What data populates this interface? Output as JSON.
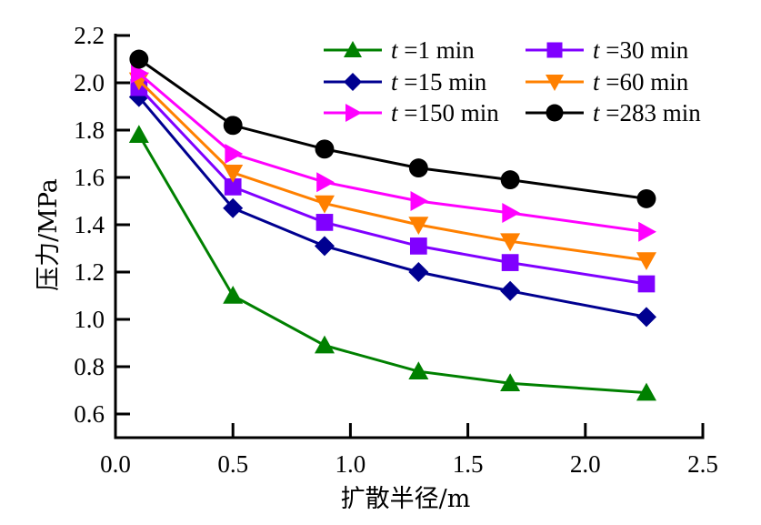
{
  "chart_data": {
    "type": "line",
    "title": "",
    "xlabel": "扩散半径/m",
    "ylabel": "压力/MPa",
    "xlim": [
      0.0,
      2.5
    ],
    "ylim": [
      0.5,
      2.2
    ],
    "xticks": [
      "0.0",
      "0.5",
      "1.0",
      "1.5",
      "2.0",
      "2.5"
    ],
    "yticks": [
      "0.6",
      "0.8",
      "1.0",
      "1.2",
      "1.4",
      "1.6",
      "1.8",
      "2.0",
      "2.2"
    ],
    "grid": false,
    "legend_position": "top-right",
    "x": [
      0.1,
      0.5,
      0.89,
      1.29,
      1.68,
      2.26
    ],
    "series": [
      {
        "name": "t =1 min",
        "t_prefix": "t",
        "label_rest": " =1 min",
        "color": "#008000",
        "marker": "triangle-up",
        "values": [
          1.78,
          1.1,
          0.89,
          0.78,
          0.73,
          0.69
        ]
      },
      {
        "name": "t =30 min",
        "t_prefix": "t",
        "label_rest": " =30 min",
        "color": "#8000FF",
        "marker": "square",
        "values": [
          1.98,
          1.56,
          1.41,
          1.31,
          1.24,
          1.15
        ]
      },
      {
        "name": "t =15 min",
        "t_prefix": "t",
        "label_rest": " =15 min",
        "color": "#000090",
        "marker": "diamond",
        "values": [
          1.94,
          1.47,
          1.31,
          1.2,
          1.12,
          1.01
        ]
      },
      {
        "name": "t =60 min",
        "t_prefix": "t",
        "label_rest": " =60 min",
        "color": "#FF8000",
        "marker": "triangle-down",
        "values": [
          2.01,
          1.62,
          1.49,
          1.4,
          1.33,
          1.25
        ]
      },
      {
        "name": "t =150 min",
        "t_prefix": "t",
        "label_rest": " =150 min",
        "color": "#FF00FF",
        "marker": "triangle-right",
        "values": [
          2.04,
          1.7,
          1.58,
          1.5,
          1.45,
          1.37
        ]
      },
      {
        "name": "t =283 min",
        "t_prefix": "t",
        "label_rest": " =283 min",
        "color": "#000000",
        "marker": "circle",
        "values": [
          2.1,
          1.82,
          1.72,
          1.64,
          1.59,
          1.51
        ]
      }
    ]
  }
}
